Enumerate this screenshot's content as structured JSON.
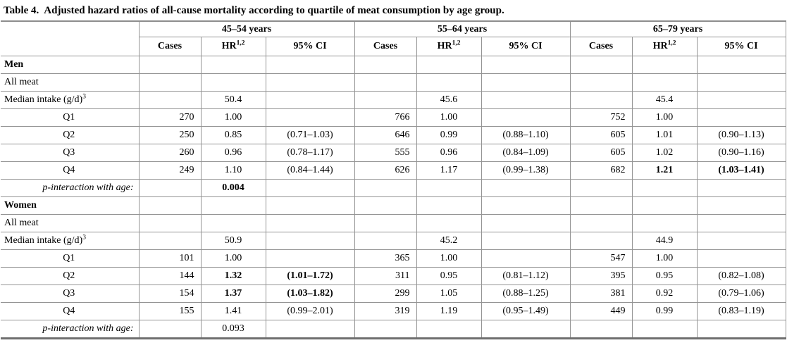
{
  "title": {
    "prefix": "Table 4.",
    "text": "Adjusted hazard ratios of all-cause mortality according to quartile of meat consumption by age group."
  },
  "table": {
    "age_group_headers": [
      "45–54 years",
      "55–64 years",
      "65–79 years"
    ],
    "column_headers": {
      "cases": "Cases",
      "hr": "HR",
      "hr_sup": "1,2",
      "ci": "95% CI"
    },
    "rows": [
      {
        "label": "Men",
        "style": "section",
        "cells": [
          "",
          "",
          "",
          "",
          "",
          "",
          "",
          "",
          ""
        ]
      },
      {
        "label": "All meat",
        "style": "plain",
        "cells": [
          "",
          "",
          "",
          "",
          "",
          "",
          "",
          "",
          ""
        ]
      },
      {
        "label": "Median intake (g/d)",
        "label_sup": "3",
        "style": "plain",
        "cells": [
          "",
          "50.4",
          "",
          "",
          "45.6",
          "",
          "",
          "45.4",
          ""
        ]
      },
      {
        "label": "Q1",
        "style": "quartile",
        "cells": [
          "270",
          "1.00",
          "",
          "766",
          "1.00",
          "",
          "752",
          "1.00",
          ""
        ]
      },
      {
        "label": "Q2",
        "style": "quartile",
        "cells": [
          "250",
          "0.85",
          "(0.71–1.03)",
          "646",
          "0.99",
          "(0.88–1.10)",
          "605",
          "1.01",
          "(0.90–1.13)"
        ]
      },
      {
        "label": "Q3",
        "style": "quartile",
        "cells": [
          "260",
          "0.96",
          "(0.78–1.17)",
          "555",
          "0.96",
          "(0.84–1.09)",
          "605",
          "1.02",
          "(0.90–1.16)"
        ]
      },
      {
        "label": "Q4",
        "style": "quartile",
        "cells": [
          "249",
          "1.10",
          "(0.84–1.44)",
          "626",
          "1.17",
          "(0.99–1.38)",
          "682",
          "1.21",
          "(1.03–1.41)"
        ],
        "bold_cells": [
          7,
          8
        ]
      },
      {
        "label": "p-interaction with age:",
        "style": "pvalue",
        "cells": [
          "",
          "0.004",
          "",
          "",
          "",
          "",
          "",
          "",
          ""
        ],
        "bold_cells": [
          1
        ]
      },
      {
        "label": "Women",
        "style": "section",
        "cells": [
          "",
          "",
          "",
          "",
          "",
          "",
          "",
          "",
          ""
        ]
      },
      {
        "label": "All meat",
        "style": "plain",
        "cells": [
          "",
          "",
          "",
          "",
          "",
          "",
          "",
          "",
          ""
        ]
      },
      {
        "label": "Median intake (g/d)",
        "label_sup": "3",
        "style": "plain",
        "cells": [
          "",
          "50.9",
          "",
          "",
          "45.2",
          "",
          "",
          "44.9",
          ""
        ]
      },
      {
        "label": "Q1",
        "style": "quartile",
        "cells": [
          "101",
          "1.00",
          "",
          "365",
          "1.00",
          "",
          "547",
          "1.00",
          ""
        ]
      },
      {
        "label": "Q2",
        "style": "quartile",
        "cells": [
          "144",
          "1.32",
          "(1.01–1.72)",
          "311",
          "0.95",
          "(0.81–1.12)",
          "395",
          "0.95",
          "(0.82–1.08)"
        ],
        "bold_cells": [
          1,
          2
        ]
      },
      {
        "label": "Q3",
        "style": "quartile",
        "cells": [
          "154",
          "1.37",
          "(1.03–1.82)",
          "299",
          "1.05",
          "(0.88–1.25)",
          "381",
          "0.92",
          "(0.79–1.06)"
        ],
        "bold_cells": [
          1,
          2
        ]
      },
      {
        "label": "Q4",
        "style": "quartile",
        "cells": [
          "155",
          "1.41",
          "(0.99–2.01)",
          "319",
          "1.19",
          "(0.95–1.49)",
          "449",
          "0.99",
          "(0.83–1.19)"
        ]
      },
      {
        "label": "p-interaction with age:",
        "style": "pvalue",
        "cells": [
          "",
          "0.093",
          "",
          "",
          "",
          "",
          "",
          "",
          ""
        ]
      }
    ]
  }
}
